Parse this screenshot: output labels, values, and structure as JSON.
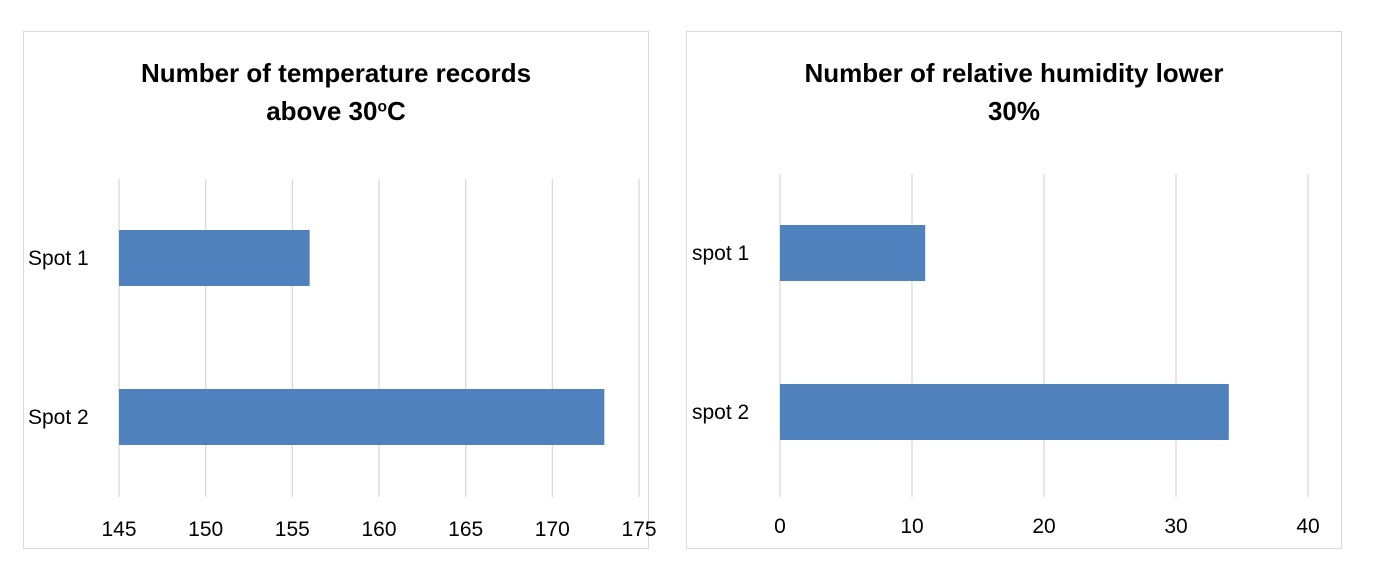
{
  "chart_data": [
    {
      "type": "bar",
      "orientation": "horizontal",
      "title_line1": "Number of temperature records",
      "title_line2_main": "above 30",
      "title_line2_sup": "o",
      "title_line2_tail": "C",
      "categories": [
        "Spot 1",
        "Spot 2"
      ],
      "values": [
        156,
        173
      ],
      "xlim": [
        145,
        175
      ],
      "ticks": [
        "145",
        "150",
        "155",
        "160",
        "165",
        "170",
        "175"
      ],
      "bar_color": "#4f81bd",
      "grid": true
    },
    {
      "type": "bar",
      "orientation": "horizontal",
      "title_line1": "Number of relative humidity lower",
      "title_line2": "30%",
      "categories": [
        "spot 1",
        "spot 2"
      ],
      "values": [
        11,
        34
      ],
      "xlim": [
        0,
        40
      ],
      "ticks": [
        "0",
        "10",
        "20",
        "30",
        "40"
      ],
      "bar_color": "#4f81bd",
      "grid": true
    }
  ]
}
